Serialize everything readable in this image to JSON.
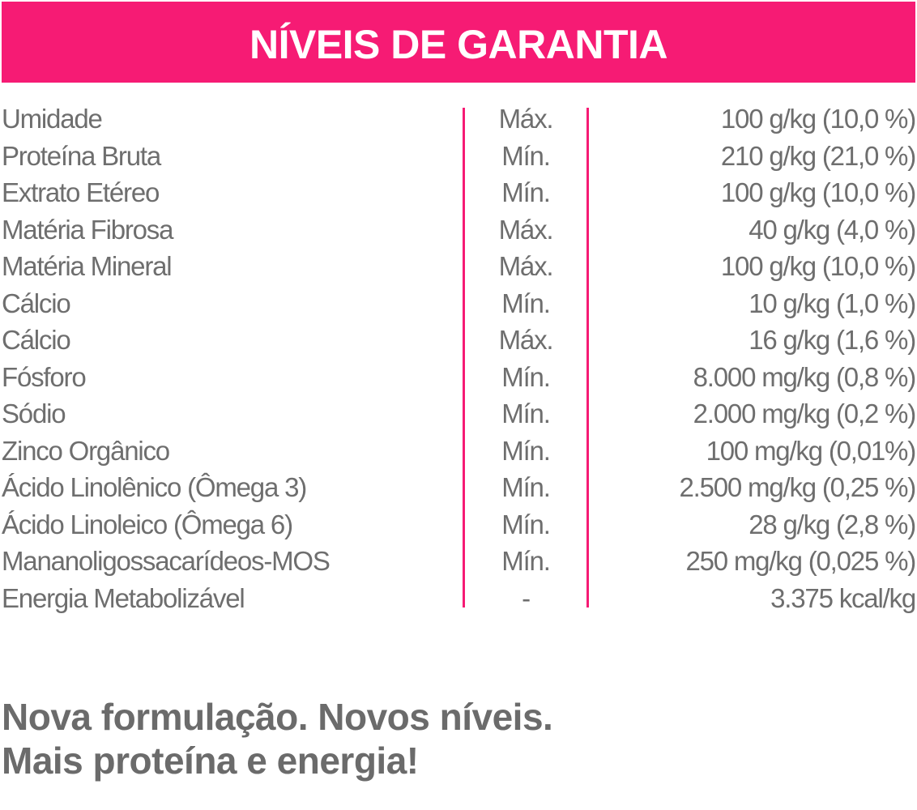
{
  "header": {
    "title": "NÍVEIS DE GARANTIA"
  },
  "colors": {
    "accent": "#f61b74",
    "text": "#6e6e6e"
  },
  "rows": [
    {
      "name": "Umidade",
      "type": "Máx.",
      "value": "100 g/kg (10,0 %)"
    },
    {
      "name": "Proteína Bruta",
      "type": "Mín.",
      "value": "210 g/kg (21,0 %)"
    },
    {
      "name": "Extrato Etéreo",
      "type": "Mín.",
      "value": "100 g/kg (10,0 %)"
    },
    {
      "name": "Matéria Fibrosa",
      "type": "Máx.",
      "value": "40 g/kg (4,0 %)"
    },
    {
      "name": "Matéria Mineral",
      "type": "Máx.",
      "value": "100 g/kg (10,0 %)"
    },
    {
      "name": "Cálcio",
      "type": "Mín.",
      "value": "10 g/kg (1,0 %)"
    },
    {
      "name": "Cálcio",
      "type": "Máx.",
      "value": "16 g/kg (1,6 %)"
    },
    {
      "name": "Fósforo",
      "type": "Mín.",
      "value": "8.000 mg/kg (0,8 %)"
    },
    {
      "name": "Sódio",
      "type": "Mín.",
      "value": "2.000 mg/kg (0,2 %)"
    },
    {
      "name": "Zinco Orgânico",
      "type": "Mín.",
      "value": "100 mg/kg (0,01%)"
    },
    {
      "name": "Ácido Linolênico (Ômega 3)",
      "type": "Mín.",
      "value": "2.500 mg/kg (0,25 %)"
    },
    {
      "name": "Ácido Linoleico (Ômega 6)",
      "type": "Mín.",
      "value": "28 g/kg (2,8 %)"
    },
    {
      "name": "Mananoligossacarídeos-MOS",
      "type": "Mín.",
      "value": "250 mg/kg (0,025 %)"
    },
    {
      "name": "Energia Metabolizável",
      "type": "-",
      "value": "3.375 kcal/kg"
    }
  ],
  "slogan": {
    "line1": "Nova formulação. Novos níveis.",
    "line2": "Mais proteína e energia!"
  }
}
